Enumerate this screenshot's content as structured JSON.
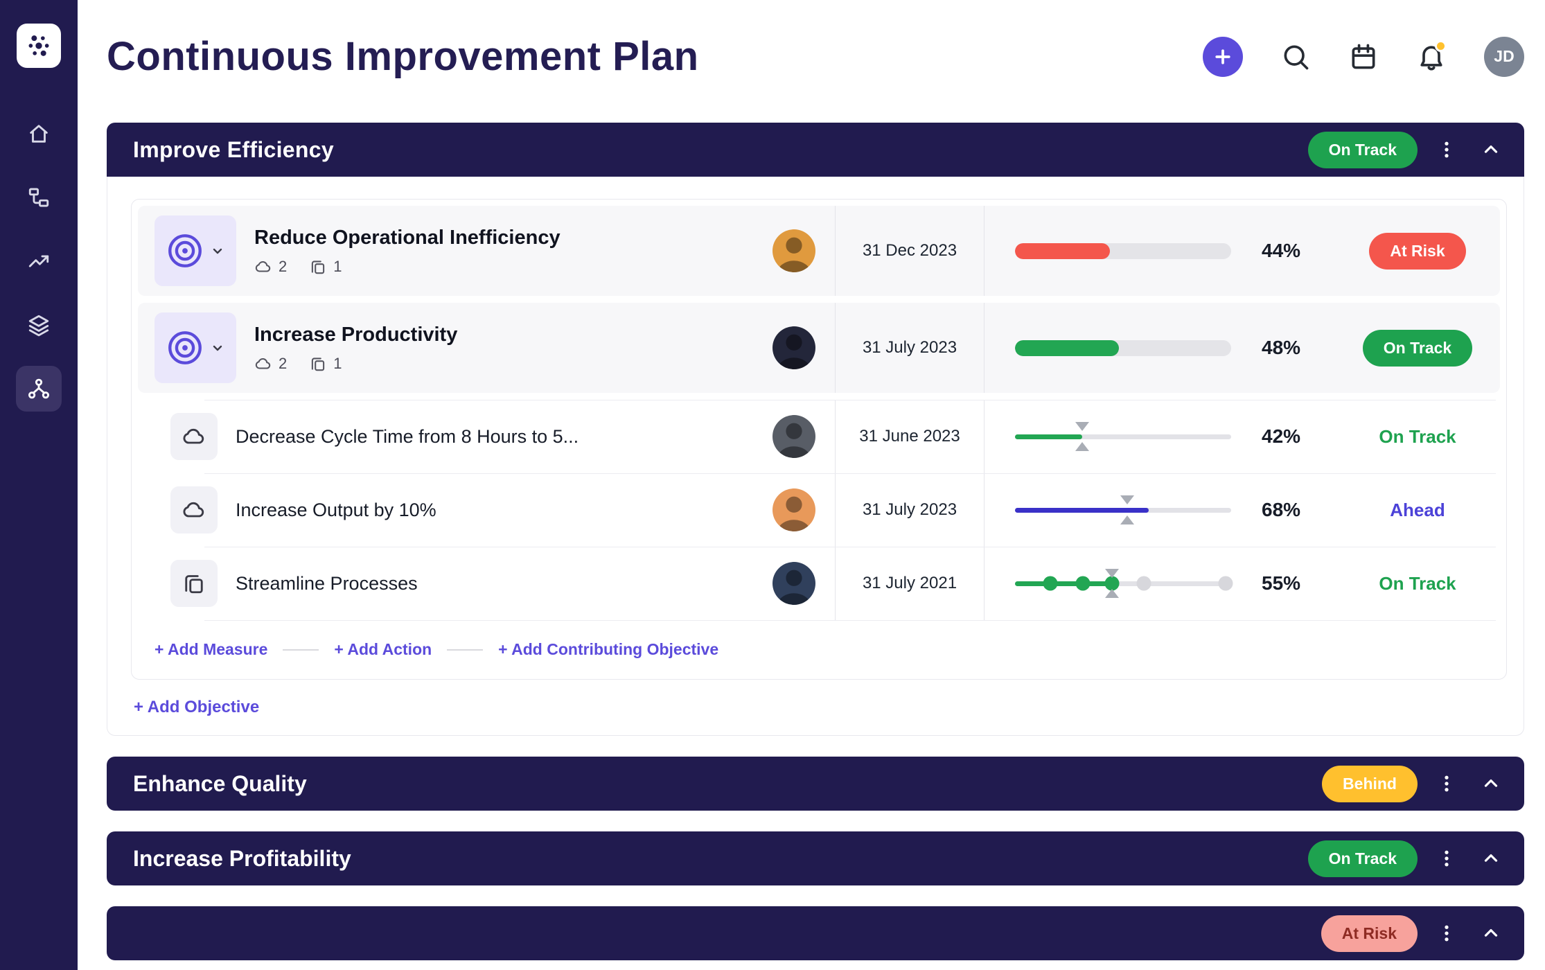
{
  "page_title": "Continuous Improvement Plan",
  "topbar": {
    "avatar_initials": "JD"
  },
  "colors": {
    "navy": "#211b4f",
    "accent_purple": "#5b4bdb",
    "green": "#1ea24f",
    "red": "#f4564c",
    "yellow": "#ffc02e",
    "indigo": "#4c42d8",
    "pink_badge": "#f7a29c"
  },
  "sidebar": {
    "items": [
      {
        "name": "home"
      },
      {
        "name": "plans"
      },
      {
        "name": "trends"
      },
      {
        "name": "layers"
      },
      {
        "name": "network",
        "active": true
      }
    ]
  },
  "sections": [
    {
      "title": "Improve Efficiency",
      "status": "On Track",
      "rows": [
        {
          "type": "objective",
          "title": "Reduce Operational Inefficiency",
          "measure_count": "2",
          "action_count": "1",
          "date": "31 Dec 2023",
          "percent": "44%",
          "value": 44,
          "status": "At Risk"
        },
        {
          "type": "objective",
          "title": "Increase Productivity",
          "measure_count": "2",
          "action_count": "1",
          "date": "31 July 2023",
          "percent": "48%",
          "value": 48,
          "status": "On Track"
        },
        {
          "type": "measure",
          "title": "Decrease Cycle Time from 8 Hours to 5...",
          "date": "31 June 2023",
          "percent": "42%",
          "value": 31,
          "marker": 31,
          "status": "On Track"
        },
        {
          "type": "measure",
          "title": "Increase Output by 10%",
          "date": "31 July 2023",
          "percent": "68%",
          "value": 62,
          "marker": 52,
          "status": "Ahead"
        },
        {
          "type": "action",
          "title": "Streamline Processes",
          "date": "31 July 2021",
          "percent": "55%",
          "value": 45,
          "marker": 45,
          "status": "On Track",
          "dots": [
            16.5,
            31.5,
            45,
            59.5,
            97.5
          ]
        }
      ],
      "links": {
        "add_measure": "+ Add Measure",
        "add_action": "+ Add Action",
        "add_contributing": "+ Add Contributing Objective",
        "add_objective": "+ Add Objective"
      }
    },
    {
      "title": "Enhance Quality",
      "status": "Behind"
    },
    {
      "title": "Increase Profitability",
      "status": "On Track"
    },
    {
      "title": "",
      "status": "At Risk"
    }
  ]
}
